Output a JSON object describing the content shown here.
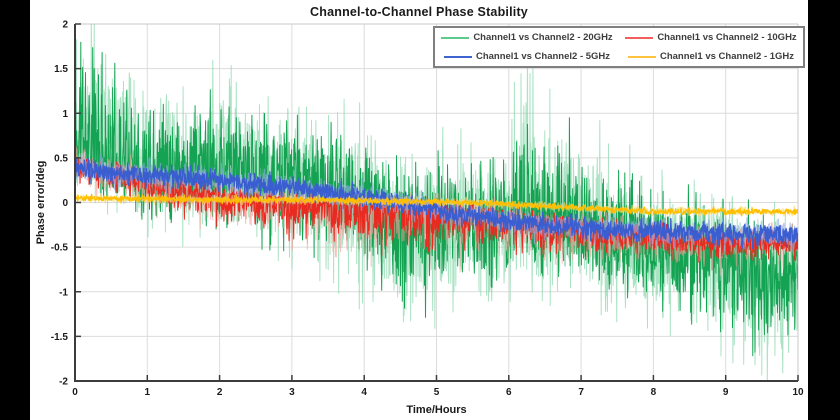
{
  "page": {
    "background_color": "#000000",
    "panel_background": "#ffffff"
  },
  "chart_data": {
    "type": "line",
    "title": "Channel-to-Channel Phase Stability",
    "xlabel": "Time/Hours",
    "ylabel": "Phase error/deg",
    "xlim": [
      0,
      10
    ],
    "ylim": [
      -2,
      2
    ],
    "xticks": [
      0,
      1,
      2,
      3,
      4,
      5,
      6,
      7,
      8,
      9,
      10
    ],
    "yticks": [
      -2,
      -1.5,
      -1,
      -0.5,
      0,
      0.5,
      1,
      1.5,
      2
    ],
    "grid": true,
    "grid_color": "#dcdcdc",
    "border_color": "#c9c9c9",
    "axis_color": "#3c3c3c",
    "tick_label_color": "#1a1a1a",
    "legend_position": "top-right",
    "legend_border_color": "#7f7f7f",
    "legend_text_color": "#3d3d3d",
    "series": [
      {
        "name": "Channel1 vs Channel2 - 20GHz",
        "color": "#14a352",
        "halo_color": "#7ed4a4",
        "legend_color": "#5fc98c",
        "width": 1,
        "seed": 11,
        "points": 2000,
        "trend": [
          [
            0,
            0.5
          ],
          [
            0.1,
            0.75
          ],
          [
            0.3,
            0.55
          ],
          [
            0.5,
            0.5
          ],
          [
            1,
            0.4
          ],
          [
            1.5,
            0.35
          ],
          [
            2,
            0.35
          ],
          [
            2.5,
            0.3
          ],
          [
            3,
            0.25
          ],
          [
            3.5,
            0.15
          ],
          [
            4,
            0.05
          ],
          [
            4.3,
            -0.15
          ],
          [
            4.7,
            -0.3
          ],
          [
            5,
            -0.2
          ],
          [
            5.5,
            -0.25
          ],
          [
            6,
            -0.3
          ],
          [
            6.15,
            0.05
          ],
          [
            6.35,
            -0.35
          ],
          [
            6.9,
            -0.15
          ],
          [
            7.3,
            -0.4
          ],
          [
            7.5,
            -0.45
          ],
          [
            8,
            -0.5
          ],
          [
            8.5,
            -0.55
          ],
          [
            9,
            -0.6
          ],
          [
            9.5,
            -0.85
          ],
          [
            9.8,
            -0.9
          ],
          [
            10,
            -0.75
          ]
        ],
        "amp_up": [
          [
            0,
            0.85
          ],
          [
            0.5,
            0.6
          ],
          [
            1,
            0.55
          ],
          [
            2,
            0.5
          ],
          [
            3,
            0.45
          ],
          [
            4,
            0.4
          ],
          [
            5,
            0.45
          ],
          [
            6,
            0.5
          ],
          [
            6.2,
            0.8
          ],
          [
            7,
            0.6
          ],
          [
            8,
            0.4
          ],
          [
            9,
            0.4
          ],
          [
            10,
            0.4
          ]
        ],
        "amp_down": [
          [
            0,
            0.3
          ],
          [
            1,
            0.35
          ],
          [
            2,
            0.4
          ],
          [
            3,
            0.45
          ],
          [
            4,
            0.5
          ],
          [
            4.5,
            0.6
          ],
          [
            5,
            0.55
          ],
          [
            6,
            0.45
          ],
          [
            7,
            0.4
          ],
          [
            8,
            0.45
          ],
          [
            9,
            0.5
          ],
          [
            9.6,
            0.55
          ],
          [
            10,
            0.5
          ]
        ]
      },
      {
        "name": "Channel1 vs Channel2 - 10GHz",
        "color": "#e92a20",
        "halo_color": "#f5a09a",
        "legend_color": "#f0615c",
        "width": 1,
        "seed": 22,
        "points": 1700,
        "trend": [
          [
            0,
            0.45
          ],
          [
            0.3,
            0.36
          ],
          [
            0.7,
            0.3
          ],
          [
            1,
            0.2
          ],
          [
            1.5,
            0.12
          ],
          [
            2,
            0.05
          ],
          [
            2.5,
            0
          ],
          [
            3,
            -0.02
          ],
          [
            3.5,
            -0.03
          ],
          [
            4,
            -0.06
          ],
          [
            4.5,
            -0.1
          ],
          [
            5,
            -0.12
          ],
          [
            5.5,
            -0.15
          ],
          [
            6,
            -0.2
          ],
          [
            6.5,
            -0.25
          ],
          [
            7,
            -0.3
          ],
          [
            7.5,
            -0.35
          ],
          [
            8,
            -0.38
          ],
          [
            8.5,
            -0.42
          ],
          [
            9,
            -0.45
          ],
          [
            9.5,
            -0.44
          ],
          [
            10,
            -0.42
          ]
        ],
        "amp_up": [
          [
            0,
            0.1
          ],
          [
            2,
            0.12
          ],
          [
            4,
            0.1
          ],
          [
            6,
            0.1
          ],
          [
            8,
            0.1
          ],
          [
            10,
            0.1
          ]
        ],
        "amp_down": [
          [
            0,
            0.12
          ],
          [
            1,
            0.15
          ],
          [
            2,
            0.2
          ],
          [
            3,
            0.22
          ],
          [
            4,
            0.28
          ],
          [
            5,
            0.28
          ],
          [
            6,
            0.22
          ],
          [
            7,
            0.18
          ],
          [
            8,
            0.15
          ],
          [
            9,
            0.15
          ],
          [
            10,
            0.12
          ]
        ]
      },
      {
        "name": "Channel1 vs Channel2 - 5GHz",
        "color": "#3a5ed0",
        "halo_color": "#96abe8",
        "legend_color": "#3f63cf",
        "width": 1.3,
        "seed": 33,
        "points": 1700,
        "trend": [
          [
            0,
            0.38
          ],
          [
            0.5,
            0.33
          ],
          [
            1,
            0.3
          ],
          [
            1.5,
            0.28
          ],
          [
            2,
            0.25
          ],
          [
            2.5,
            0.2
          ],
          [
            3,
            0.17
          ],
          [
            3.5,
            0.12
          ],
          [
            4,
            0.07
          ],
          [
            4.5,
            0
          ],
          [
            5,
            -0.08
          ],
          [
            5.5,
            -0.15
          ],
          [
            6,
            -0.2
          ],
          [
            6.5,
            -0.25
          ],
          [
            7,
            -0.28
          ],
          [
            7.5,
            -0.3
          ],
          [
            8,
            -0.32
          ],
          [
            8.5,
            -0.34
          ],
          [
            9,
            -0.35
          ],
          [
            10,
            -0.35
          ]
        ],
        "amp_up": [
          [
            0,
            0.08
          ],
          [
            5,
            0.08
          ],
          [
            10,
            0.08
          ]
        ],
        "amp_down": [
          [
            0,
            0.08
          ],
          [
            5,
            0.09
          ],
          [
            10,
            0.09
          ]
        ]
      },
      {
        "name": "Channel1 vs Channel2 - 1GHz",
        "color": "#ffbf00",
        "halo_color": "#ffd966",
        "legend_color": "#ffc43d",
        "width": 1.3,
        "seed": 44,
        "points": 1400,
        "trend": [
          [
            0,
            0.05
          ],
          [
            1,
            0.04
          ],
          [
            2,
            0.03
          ],
          [
            3,
            0.03
          ],
          [
            4,
            0.02
          ],
          [
            5,
            0.01
          ],
          [
            5.5,
            0
          ],
          [
            6,
            -0.02
          ],
          [
            6.5,
            -0.04
          ],
          [
            7,
            -0.06
          ],
          [
            7.5,
            -0.08
          ],
          [
            8,
            -0.1
          ],
          [
            9,
            -0.1
          ],
          [
            10,
            -0.1
          ]
        ],
        "amp_up": [
          [
            0,
            0.025
          ],
          [
            10,
            0.025
          ]
        ],
        "amp_down": [
          [
            0,
            0.025
          ],
          [
            10,
            0.025
          ]
        ]
      }
    ]
  }
}
